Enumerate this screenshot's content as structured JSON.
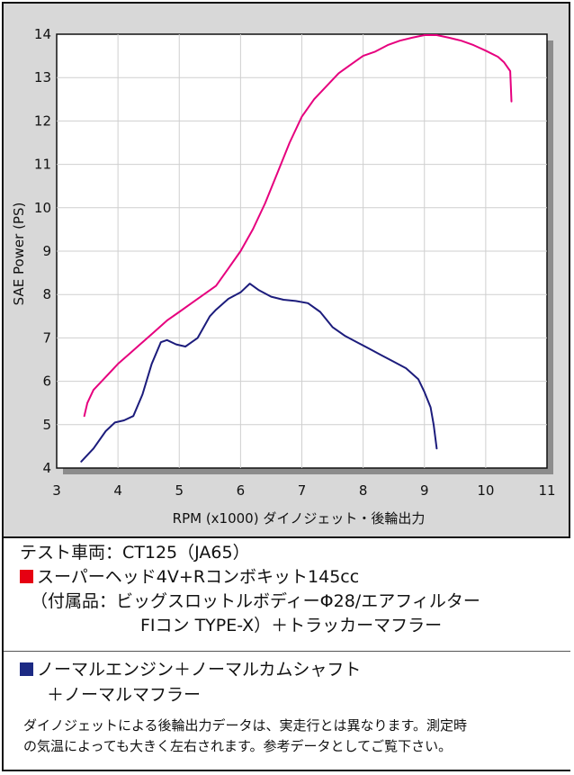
{
  "chart_data": {
    "type": "line",
    "xlabel": "RPM (x1000) ダイノジェット・後輪出力",
    "ylabel": "SAE Power (PS)",
    "xlim": [
      3,
      11
    ],
    "ylim": [
      4,
      14
    ],
    "xticks": [
      "3",
      "4",
      "5",
      "6",
      "7",
      "8",
      "9",
      "10",
      "11"
    ],
    "yticks": [
      "4",
      "5",
      "6",
      "7",
      "8",
      "9",
      "10",
      "11",
      "12",
      "13",
      "14"
    ],
    "grid": true,
    "series": [
      {
        "color": "#e6007e",
        "x": [
          3.45,
          3.5,
          3.6,
          3.8,
          4.0,
          4.2,
          4.4,
          4.6,
          4.8,
          5.0,
          5.2,
          5.4,
          5.6,
          5.8,
          6.0,
          6.2,
          6.4,
          6.6,
          6.8,
          7.0,
          7.2,
          7.4,
          7.6,
          7.8,
          8.0,
          8.2,
          8.4,
          8.6,
          8.8,
          9.0,
          9.2,
          9.4,
          9.6,
          9.8,
          10.0,
          10.2,
          10.3,
          10.4,
          10.42
        ],
        "y": [
          5.2,
          5.5,
          5.8,
          6.1,
          6.4,
          6.65,
          6.9,
          7.15,
          7.4,
          7.6,
          7.8,
          8.0,
          8.2,
          8.6,
          9.0,
          9.5,
          10.1,
          10.8,
          11.5,
          12.1,
          12.5,
          12.8,
          13.1,
          13.3,
          13.5,
          13.6,
          13.75,
          13.85,
          13.92,
          13.98,
          13.98,
          13.92,
          13.85,
          13.75,
          13.62,
          13.48,
          13.35,
          13.15,
          12.45
        ]
      },
      {
        "color": "#1c1c7c",
        "x": [
          3.4,
          3.6,
          3.8,
          3.95,
          4.1,
          4.25,
          4.4,
          4.55,
          4.7,
          4.8,
          4.95,
          5.1,
          5.3,
          5.5,
          5.6,
          5.8,
          6.0,
          6.15,
          6.3,
          6.5,
          6.7,
          6.9,
          7.1,
          7.3,
          7.5,
          7.7,
          7.9,
          8.1,
          8.3,
          8.5,
          8.7,
          8.9,
          9.0,
          9.1,
          9.15,
          9.2
        ],
        "y": [
          4.15,
          4.45,
          4.85,
          5.05,
          5.1,
          5.2,
          5.7,
          6.4,
          6.9,
          6.95,
          6.85,
          6.8,
          7.0,
          7.5,
          7.65,
          7.9,
          8.05,
          8.25,
          8.1,
          7.95,
          7.88,
          7.85,
          7.8,
          7.6,
          7.25,
          7.05,
          6.9,
          6.75,
          6.6,
          6.45,
          6.3,
          6.05,
          5.75,
          5.4,
          5.0,
          4.45
        ]
      }
    ]
  },
  "legend": {
    "title": "テスト車両：CT125（JA65）",
    "item1": {
      "color": "#e60012",
      "line1": "スーパーヘッド4V+Rコンボキット145cc",
      "line2": "（付属品：ビッグスロットルボディーΦ28/エアフィルター",
      "line3": "FIコン TYPE-X）＋トラッカーマフラー"
    },
    "item2": {
      "color": "#1c2a84",
      "line1": "ノーマルエンジン＋ノーマルカムシャフト",
      "line2": "＋ノーマルマフラー"
    }
  },
  "note": {
    "line1": "ダイノジェットによる後輪出力データは、実走行とは異なります。測定時",
    "line2": "の気温によっても大きく左右されます。参考データとしてご覧下さい。"
  }
}
